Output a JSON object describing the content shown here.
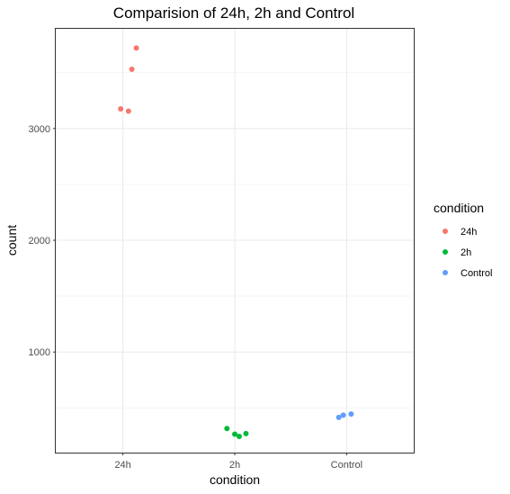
{
  "chart_data": {
    "type": "scatter",
    "title": "Comparision of 24h, 2h and Control",
    "xlabel": "condition",
    "ylabel": "count",
    "categories": [
      "24h",
      "2h",
      "Control"
    ],
    "y_ticks": [
      1000,
      2000,
      3000
    ],
    "ylim": [
      100,
      3900
    ],
    "grid": true,
    "legend": {
      "title": "condition",
      "position": "right",
      "entries": [
        "24h",
        "2h",
        "Control"
      ]
    },
    "series": [
      {
        "name": "24h",
        "color": "#F8766D",
        "points": [
          {
            "x": "24h",
            "jitter": 0.12,
            "y": 3720
          },
          {
            "x": "24h",
            "jitter": 0.08,
            "y": 3530
          },
          {
            "x": "24h",
            "jitter": -0.02,
            "y": 3175
          },
          {
            "x": "24h",
            "jitter": 0.05,
            "y": 3155
          }
        ]
      },
      {
        "name": "2h",
        "color": "#00BA38",
        "points": [
          {
            "x": "2h",
            "jitter": -0.07,
            "y": 315
          },
          {
            "x": "2h",
            "jitter": 0.0,
            "y": 265
          },
          {
            "x": "2h",
            "jitter": 0.04,
            "y": 245
          },
          {
            "x": "2h",
            "jitter": 0.1,
            "y": 270
          }
        ]
      },
      {
        "name": "Control",
        "color": "#619CFF",
        "points": [
          {
            "x": "Control",
            "jitter": -0.07,
            "y": 415
          },
          {
            "x": "Control",
            "jitter": -0.03,
            "y": 435
          },
          {
            "x": "Control",
            "jitter": 0.04,
            "y": 445
          }
        ]
      }
    ]
  }
}
